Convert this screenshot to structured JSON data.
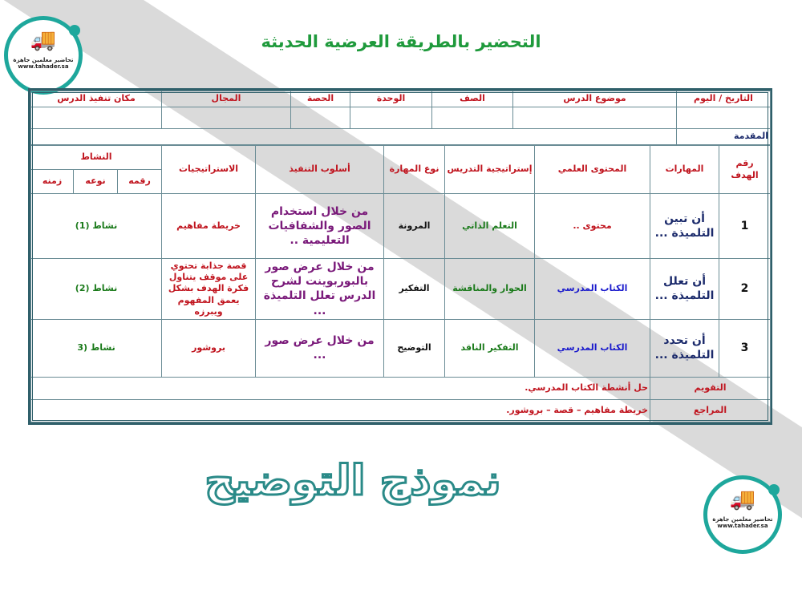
{
  "title": "التحضير بالطريقة العرضية الحديثة",
  "logo": {
    "name": "تحاضير معلمين جاهزة",
    "url": "www.tahader.sa"
  },
  "watermark": "نموذج التوضيح",
  "header": [
    "التاريخ / اليوم",
    "موضوع الدرس",
    "الصف",
    "الوحدة",
    "الحصة",
    "المجال",
    "مكان تنفيذ الدرس"
  ],
  "intro_label": "المقدمة",
  "columns": {
    "goal_no": "رقم الهدف",
    "skills": "المهارات",
    "content": "المحتوى العلمي",
    "teaching_strategy": "إستراتيجية التدريس",
    "skill_type": "نوع المهارة",
    "method": "أسلوب التنفيذ",
    "strategies": "الاستراتيجيات",
    "activity": "النشاط",
    "activity_no": "رقمه",
    "activity_type": "نوعه",
    "activity_time": "زمنه"
  },
  "rows": [
    {
      "no": "1",
      "skill": "أن تبين التلميذة ...",
      "content": "محتوى ..",
      "strategy": "التعلم الذاتي",
      "skill_type": "المرونة",
      "method": "من خلال استخدام الصور والشفافيات التعليمية ..",
      "strategies": "خريطة مفاهيم",
      "activity": "نشاط (1)"
    },
    {
      "no": "2",
      "skill": "أن تعلل التلميذة ...",
      "content": "الكتاب المدرسي",
      "strategy": "الحوار والمناقشة",
      "skill_type": "التفكير",
      "method": "من خلال عرض صور بالبوربوينت لشرح الدرس تعلل التلميذة ...",
      "strategies": "قصة جذابة تحتوي على موقف يتناول فكرة الهدف بشكل يعمق المفهوم ويبرزه",
      "activity": "نشاط (2)"
    },
    {
      "no": "3",
      "skill": "أن تحدد التلميذة ...",
      "content": "الكتاب المدرسي",
      "strategy": "التفكير الناقد",
      "skill_type": "التوضيح",
      "method": "من خلال عرض صور ...",
      "strategies": "بروشور",
      "activity": "نشاط (3"
    }
  ],
  "evaluation": {
    "label": "التقويم",
    "value": "حل أنشطة الكتاب المدرسي."
  },
  "references": {
    "label": "المراجع",
    "value": "خريطة مفاهيم – قصة – بروشور."
  },
  "colors": {
    "title": "#1f9a3c",
    "border": "#2f5f6a",
    "accent": "#1ea79c"
  }
}
